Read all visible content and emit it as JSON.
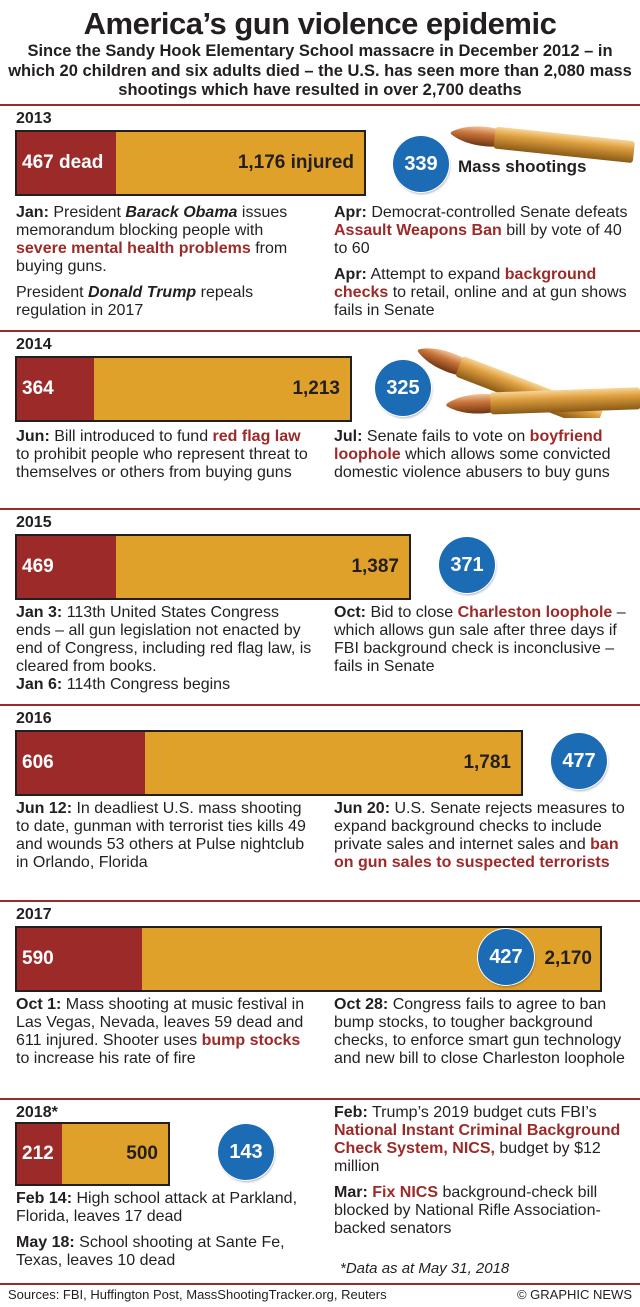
{
  "title": "America’s gun violence epidemic",
  "subtitle": "Since the Sandy Hook Elementary School massacre in December 2012 – in which 20 children and six adults died – the U.S. has seen more than 2,080 mass shootings which have resulted in over 2,700 deaths",
  "mass_shootings_label": "Mass shootings",
  "years": [
    {
      "year": "2013",
      "dead": "467 dead",
      "injured": "1,176 injured",
      "shootings": "339",
      "left_notes": [
        [
          {
            "t": "Jan:",
            "s": "b"
          },
          {
            "t": " President "
          },
          {
            "t": "Barack Obama",
            "s": "bi"
          },
          {
            "t": " issues memorandum blocking people with "
          },
          {
            "t": "severe mental health problems",
            "s": "hl"
          },
          {
            "t": " from buying guns."
          }
        ],
        [
          {
            "t": "President "
          },
          {
            "t": "Donald Trump",
            "s": "bi"
          },
          {
            "t": " repeals regulation in 2017"
          }
        ]
      ],
      "right_notes": [
        [
          {
            "t": "Apr:",
            "s": "b"
          },
          {
            "t": " Democrat-controlled Senate defeats "
          },
          {
            "t": "Assault Weapons Ban",
            "s": "hl"
          },
          {
            "t": " bill by vote of 40 to 60"
          }
        ],
        [
          {
            "t": "Apr:",
            "s": "b"
          },
          {
            "t": " Attempt to expand "
          },
          {
            "t": "background checks",
            "s": "hl"
          },
          {
            "t": " to retail, online and at gun shows fails in Senate"
          }
        ]
      ]
    },
    {
      "year": "2014",
      "dead": "364",
      "injured": "1,213",
      "shootings": "325",
      "left_notes": [
        [
          {
            "t": "Jun:",
            "s": "b"
          },
          {
            "t": " Bill introduced to fund "
          },
          {
            "t": "red flag law",
            "s": "hl"
          },
          {
            "t": " to prohibit people who represent threat to themselves or others from buying guns"
          }
        ]
      ],
      "right_notes": [
        [
          {
            "t": "Jul:",
            "s": "b"
          },
          {
            "t": " Senate fails to vote on "
          },
          {
            "t": "boyfriend loophole",
            "s": "hl"
          },
          {
            "t": " which allows some convicted domestic violence abusers to buy guns"
          }
        ]
      ]
    },
    {
      "year": "2015",
      "dead": "469",
      "injured": "1,387",
      "shootings": "371",
      "left_notes": [
        [
          {
            "t": "Jan 3:",
            "s": "b"
          },
          {
            "t": " 113th United States Congress ends – all gun legislation not enacted by end of Congress, including red flag law, is cleared from books."
          }
        ],
        [
          {
            "t": "Jan 6:",
            "s": "b"
          },
          {
            "t": " 114th Congress begins"
          }
        ]
      ],
      "right_notes": [
        [
          {
            "t": "Oct:",
            "s": "b"
          },
          {
            "t": " Bid to close "
          },
          {
            "t": "Charleston loophole",
            "s": "hl"
          },
          {
            "t": " – which allows gun sale after three days if FBI background check is inconclusive – fails in Senate"
          }
        ]
      ]
    },
    {
      "year": "2016",
      "dead": "606",
      "injured": "1,781",
      "shootings": "477",
      "left_notes": [
        [
          {
            "t": "Jun 12:",
            "s": "b"
          },
          {
            "t": " In deadliest U.S. mass shooting to date, gunman with terrorist ties kills 49 and wounds 53 others at Pulse nightclub in Orlando, Florida"
          }
        ]
      ],
      "right_notes": [
        [
          {
            "t": "Jun 20:",
            "s": "b"
          },
          {
            "t": " U.S. Senate rejects measures to expand background checks to include private sales and internet sales and "
          },
          {
            "t": "ban on gun sales to suspected terrorists",
            "s": "hl"
          }
        ]
      ]
    },
    {
      "year": "2017",
      "dead": "590",
      "injured": "2,170",
      "shootings": "427",
      "left_notes": [
        [
          {
            "t": "Oct 1:",
            "s": "b"
          },
          {
            "t": " Mass shooting at music festival in Las Vegas, Nevada, leaves 59 dead and 611 injured. Shooter uses "
          },
          {
            "t": "bump stocks",
            "s": "hl"
          },
          {
            "t": " to increase his rate of fire"
          }
        ]
      ],
      "right_notes": [
        [
          {
            "t": "Oct 28:",
            "s": "b"
          },
          {
            "t": " Congress fails to agree to ban bump stocks, to tougher background checks, to enforce smart gun technology and new bill to close Charleston loophole"
          }
        ]
      ]
    },
    {
      "year": "2018*",
      "dead": "212",
      "injured": "500",
      "shootings": "143",
      "left_notes": [
        [
          {
            "t": "Feb 14:",
            "s": "b"
          },
          {
            "t": " High school attack at Parkland, Florida, leaves 17 dead"
          }
        ],
        [
          {
            "t": "May 18:",
            "s": "b"
          },
          {
            "t": " School shooting at Sante Fe, Texas,  leaves 10 dead"
          }
        ]
      ],
      "right_notes": [
        [
          {
            "t": "Feb:",
            "s": "b"
          },
          {
            "t": " Trump’s 2019 budget cuts FBI’s "
          },
          {
            "t": "National Instant Criminal Background Check System, NICS,",
            "s": "hl"
          },
          {
            "t": " budget by $12 million"
          }
        ],
        [
          {
            "t": "Mar:",
            "s": "b"
          },
          {
            "t": " "
          },
          {
            "t": "Fix NICS",
            "s": "hl"
          },
          {
            "t": " background-check bill blocked by National Rifle Association-backed senators"
          }
        ]
      ]
    }
  ],
  "chart_data": {
    "type": "bar",
    "categories": [
      "2013",
      "2014",
      "2015",
      "2016",
      "2017",
      "2018*"
    ],
    "series": [
      {
        "name": "dead",
        "values": [
          467,
          364,
          469,
          606,
          590,
          212
        ]
      },
      {
        "name": "injured",
        "values": [
          1176,
          1213,
          1387,
          1781,
          2170,
          500
        ]
      },
      {
        "name": "Mass shootings",
        "values": [
          339,
          325,
          371,
          477,
          427,
          143
        ]
      }
    ],
    "stacked": true,
    "orientation": "horizontal"
  },
  "footnote": "*Data as at May 31, 2018",
  "sources": "Sources: FBI, Huffington Post, MassShootingTracker.org, Reuters",
  "credit": "© GRAPHIC NEWS",
  "colors": {
    "dead": "#9c2a28",
    "injured": "#e0a12b",
    "circle": "#1c6bb5",
    "rule": "#9c2a28"
  }
}
